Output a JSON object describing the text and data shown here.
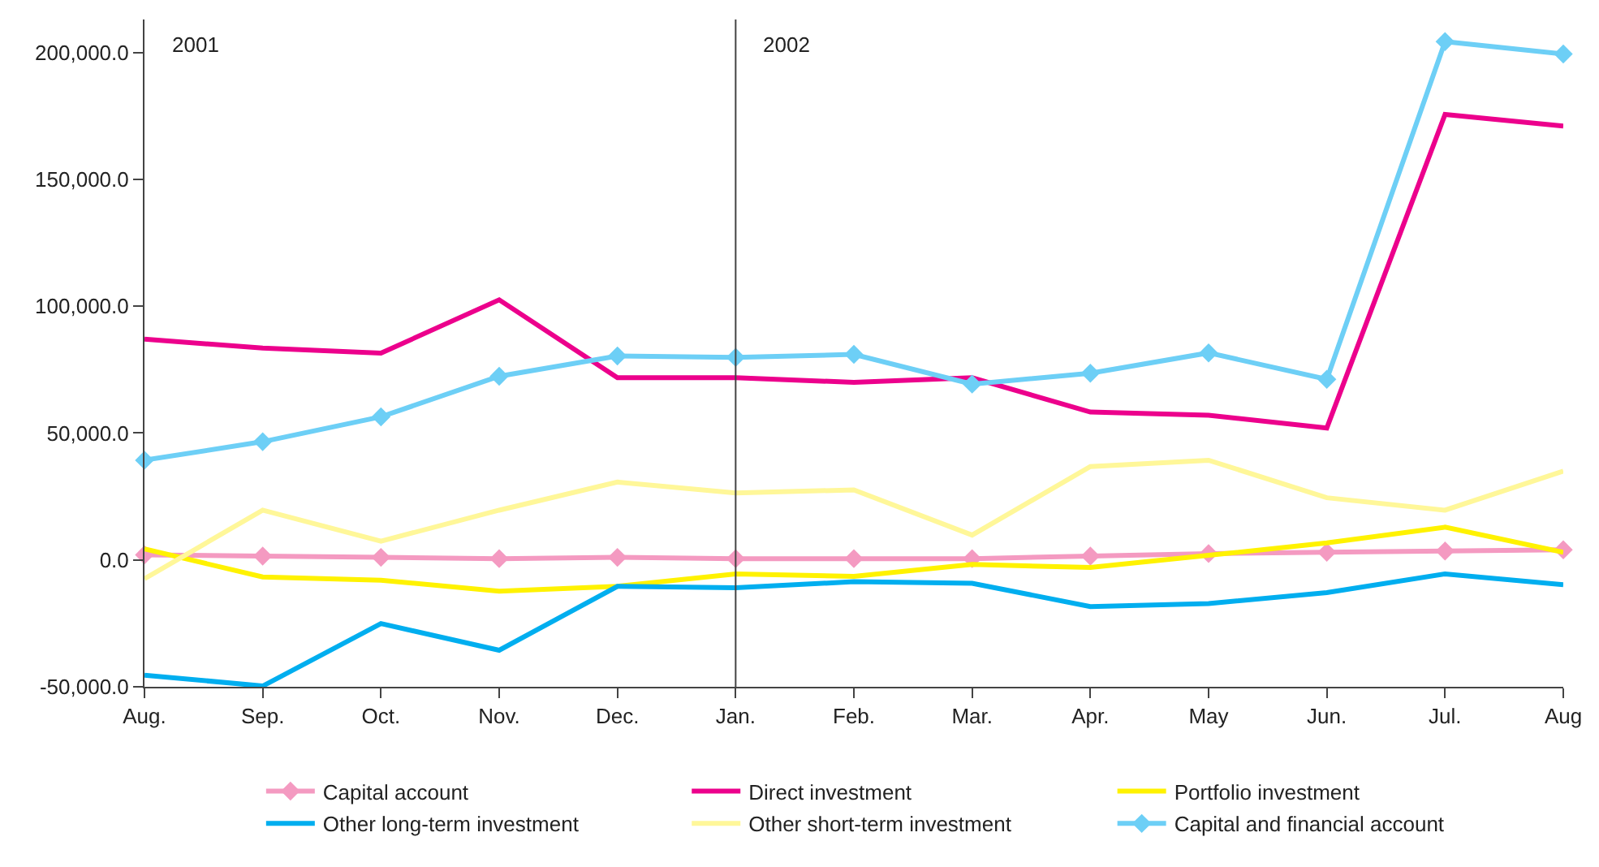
{
  "chart_data": {
    "type": "line",
    "categories": [
      "Aug.",
      "Sep.",
      "Oct.",
      "Nov.",
      "Dec.",
      "Jan.",
      "Feb.",
      "Mar.",
      "Apr.",
      "May",
      "Jun.",
      "Jul.",
      "Aug"
    ],
    "series": [
      {
        "name": "Capital account",
        "color": "#f49ac1",
        "marker": "diamond",
        "values": [
          2000,
          1500,
          1000,
          500,
          1000,
          500,
          500,
          500,
          1500,
          2500,
          3000,
          3500,
          4000
        ]
      },
      {
        "name": "Direct investment",
        "color": "#ec008c",
        "marker": "none",
        "values": [
          87000,
          83500,
          81500,
          102500,
          71800,
          71800,
          70000,
          71800,
          58300,
          57000,
          52000,
          175600,
          171000
        ]
      },
      {
        "name": "Portfolio investment",
        "color": "#fff200",
        "marker": "none",
        "values": [
          4300,
          -6700,
          -8000,
          -12300,
          -10400,
          -5500,
          -6500,
          -1800,
          -3000,
          1800,
          6700,
          12900,
          3000
        ]
      },
      {
        "name": "Other long-term investment",
        "color": "#00aeef",
        "marker": "none",
        "values": [
          -45400,
          -49700,
          -25100,
          -35600,
          -10400,
          -11000,
          -8600,
          -9200,
          -18400,
          -17200,
          -12900,
          -5500,
          -9800
        ]
      },
      {
        "name": "Other short-term investment",
        "color": "#fff799",
        "marker": "none",
        "values": [
          -7400,
          19600,
          7400,
          19600,
          30700,
          26400,
          27600,
          9800,
          36800,
          39300,
          24500,
          19600,
          35000
        ]
      },
      {
        "name": "Capital and financial account",
        "color": "#6dcff6",
        "marker": "diamond",
        "values": [
          39300,
          46600,
          56400,
          72400,
          80400,
          79800,
          81000,
          69300,
          73600,
          81600,
          71200,
          204300,
          199400
        ]
      }
    ],
    "ylim": [
      -50000,
      213000
    ],
    "yticks": [
      {
        "value": -50000,
        "label": "-50,000.0"
      },
      {
        "value": 0,
        "label": "0.0"
      },
      {
        "value": 50000,
        "label": "50,000.0"
      },
      {
        "value": 100000,
        "label": "100,000.0"
      },
      {
        "value": 150000,
        "label": "150,000.0"
      },
      {
        "value": 200000,
        "label": "200,000.0"
      }
    ],
    "ref_lines": [
      {
        "axis": "x",
        "value": "Jan.",
        "color": "#444444"
      }
    ],
    "annotations": [
      "2001",
      "2002"
    ],
    "grid": false,
    "legend": "bottom",
    "line_style": "solid"
  }
}
